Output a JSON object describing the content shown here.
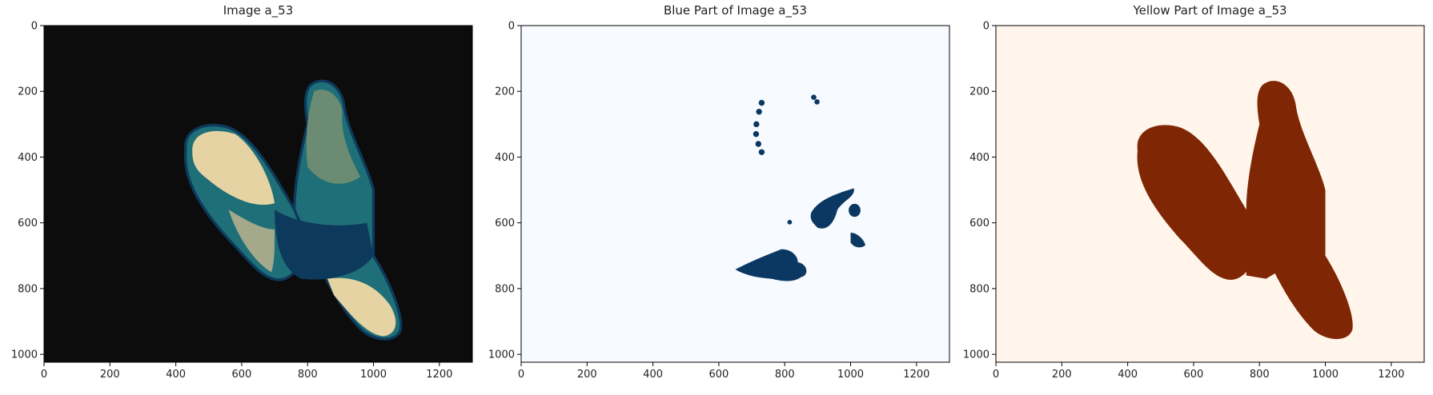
{
  "chart_data": [
    {
      "type": "image",
      "title": "Image a_53",
      "xlim": [
        0,
        1300
      ],
      "ylim": [
        1024,
        0
      ],
      "xticks": [
        0,
        200,
        400,
        600,
        800,
        1000,
        1200
      ],
      "yticks": [
        0,
        200,
        400,
        600,
        800,
        1000
      ],
      "background": "#0c0c0c"
    },
    {
      "type": "image",
      "title": "Blue Part of Image a_53",
      "xlim": [
        0,
        1300
      ],
      "ylim": [
        1024,
        0
      ],
      "xticks": [
        0,
        200,
        400,
        600,
        800,
        1000,
        1200
      ],
      "yticks": [
        0,
        200,
        400,
        600,
        800,
        1000
      ],
      "background": "#f7fbff",
      "color": "#0b3862"
    },
    {
      "type": "image",
      "title": "Yellow Part of Image a_53",
      "xlim": [
        0,
        1300
      ],
      "ylim": [
        1024,
        0
      ],
      "xticks": [
        0,
        200,
        400,
        600,
        800,
        1000,
        1200
      ],
      "yticks": [
        0,
        200,
        400,
        600,
        800,
        1000
      ],
      "background": "#fff5eb",
      "color": "#7f2704"
    }
  ]
}
